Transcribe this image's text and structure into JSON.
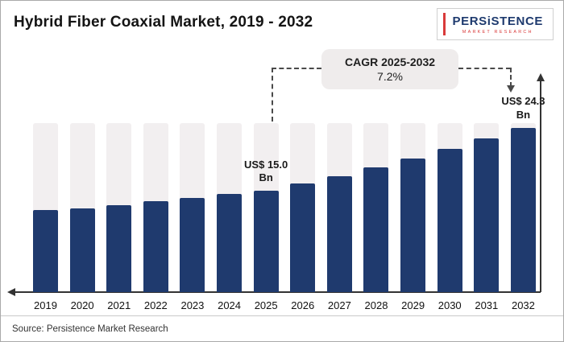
{
  "page": {
    "title": "Hybrid Fiber Coaxial Market, 2019 - 2032",
    "source": "Source: Persistence Market Research"
  },
  "logo": {
    "name": "PERSiSTENCE",
    "subtitle": "MARKET RESEARCH"
  },
  "annotation": {
    "cagr_label": "CAGR 2025-2032",
    "cagr_value": "7.2%"
  },
  "chart_data": {
    "type": "bar",
    "title": "Hybrid Fiber Coaxial Market, 2019 - 2032",
    "categories": [
      "2019",
      "2020",
      "2021",
      "2022",
      "2023",
      "2024",
      "2025",
      "2026",
      "2027",
      "2028",
      "2029",
      "2030",
      "2031",
      "2032"
    ],
    "values": [
      12.1,
      12.4,
      12.9,
      13.4,
      13.9,
      14.5,
      15.0,
      16.1,
      17.2,
      18.5,
      19.8,
      21.2,
      22.7,
      24.3
    ],
    "unit": "US$ Bn",
    "xlabel": "",
    "ylabel": "",
    "ylim": [
      0,
      25
    ],
    "grid": false,
    "legend": false,
    "bar_color": "#1f3a6e",
    "track_color": "#f2eff0",
    "data_labels": [
      {
        "year": "2025",
        "label": "US$ 15.0 Bn"
      },
      {
        "year": "2032",
        "label": "US$ 24.3 Bn"
      }
    ]
  }
}
